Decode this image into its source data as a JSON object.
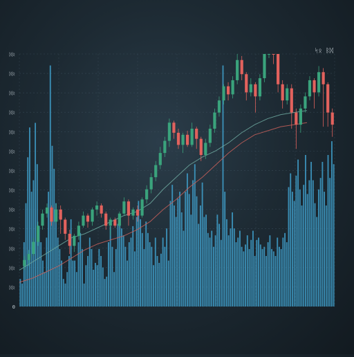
{
  "colors": {
    "background": "#1b2730",
    "grid": "#3f5260",
    "up": "#3aa37c",
    "down": "#e2625d",
    "volume": "#3f9fca",
    "ma_short": "#6fa9a0",
    "ma_long": "#c9605a",
    "label": "#c9d3da"
  },
  "header": {
    "legend_text": "ᛋᛟ ᛒᛞ"
  },
  "chart_data": {
    "type": "candlestick",
    "title": "",
    "xlabel": "",
    "ylabel": "",
    "grid": true,
    "price_range": [
      0,
      12.5
    ],
    "volume_range": [
      0,
      11
    ],
    "y_tick_labels": [
      "0",
      "ᛞᛟ",
      "ᛞᛟ",
      "ᛞᛟ",
      "ᛞᛟ",
      "ᛞᛟ",
      "ᛞᛟ",
      "ᛞᛟ",
      "ᛞᛟ",
      "ᛞᛟ",
      "ᛞᛟ",
      "ᛞᛟ",
      "ᛞᛟ",
      "ᛞᛟ"
    ],
    "ma_short": [
      1.8,
      2.2,
      2.6,
      3.0,
      3.4,
      3.6,
      3.9,
      4.2,
      4.5,
      4.7,
      5.1,
      5.8,
      6.4,
      7.0,
      7.4,
      7.7,
      8.1,
      8.6,
      9.0,
      9.3,
      9.5,
      9.6,
      9.7
    ],
    "ma_long": [
      1.2,
      1.4,
      1.7,
      2.0,
      2.4,
      2.8,
      3.1,
      3.3,
      3.5,
      3.8,
      4.2,
      4.8,
      5.3,
      5.9,
      6.4,
      7.0,
      7.6,
      8.1,
      8.5,
      8.7,
      8.9,
      9.0,
      9.1
    ],
    "candles": [
      [
        2.0,
        2.3,
        1.8,
        2.5
      ],
      [
        2.3,
        2.6,
        2.0,
        2.8
      ],
      [
        2.6,
        3.2,
        2.5,
        3.4
      ],
      [
        3.2,
        4.0,
        3.0,
        4.2
      ],
      [
        4.0,
        4.6,
        3.8,
        4.8
      ],
      [
        4.6,
        4.9,
        4.4,
        5.1
      ],
      [
        4.9,
        4.2,
        4.0,
        5.0
      ],
      [
        4.2,
        4.8,
        4.1,
        5.1
      ],
      [
        4.8,
        4.3,
        3.6,
        5.0
      ],
      [
        4.3,
        3.6,
        3.3,
        4.4
      ],
      [
        3.6,
        3.0,
        2.6,
        3.8
      ],
      [
        3.0,
        3.5,
        2.7,
        3.6
      ],
      [
        3.5,
        4.0,
        3.3,
        4.2
      ],
      [
        4.0,
        4.5,
        3.9,
        4.7
      ],
      [
        4.5,
        4.2,
        3.9,
        4.6
      ],
      [
        4.2,
        4.8,
        4.0,
        4.9
      ],
      [
        4.8,
        5.0,
        4.5,
        5.2
      ],
      [
        5.0,
        4.6,
        4.4,
        5.1
      ],
      [
        4.6,
        4.0,
        3.8,
        4.7
      ],
      [
        4.0,
        4.3,
        3.5,
        4.4
      ],
      [
        4.3,
        4.0,
        3.9,
        4.4
      ],
      [
        4.0,
        4.6,
        3.9,
        4.7
      ],
      [
        4.6,
        5.2,
        4.5,
        5.4
      ],
      [
        5.2,
        4.5,
        4.0,
        5.3
      ],
      [
        4.5,
        4.8,
        4.3,
        4.9
      ],
      [
        4.8,
        4.5,
        4.2,
        5.0
      ],
      [
        4.5,
        5.3,
        4.4,
        5.4
      ],
      [
        5.3,
        5.8,
        5.1,
        6.0
      ],
      [
        5.8,
        6.4,
        5.6,
        6.6
      ],
      [
        6.4,
        7.0,
        6.2,
        7.2
      ],
      [
        7.0,
        7.6,
        6.8,
        7.9
      ],
      [
        7.6,
        8.2,
        7.4,
        8.4
      ],
      [
        8.2,
        9.1,
        7.9,
        9.3
      ],
      [
        9.1,
        8.6,
        8.3,
        9.2
      ],
      [
        8.6,
        8.0,
        7.8,
        8.8
      ],
      [
        8.0,
        8.5,
        7.6,
        8.6
      ],
      [
        8.5,
        8.0,
        7.9,
        8.7
      ],
      [
        8.0,
        8.8,
        7.9,
        9.1
      ],
      [
        8.8,
        8.3,
        7.8,
        8.9
      ],
      [
        8.3,
        7.5,
        7.2,
        8.4
      ],
      [
        7.5,
        8.1,
        7.3,
        8.3
      ],
      [
        8.1,
        8.8,
        7.9,
        9.0
      ],
      [
        8.8,
        9.6,
        8.6,
        9.8
      ],
      [
        9.6,
        10.2,
        9.4,
        10.4
      ],
      [
        10.2,
        10.9,
        10.0,
        11.0
      ],
      [
        10.9,
        10.5,
        10.2,
        11.1
      ],
      [
        10.5,
        11.2,
        10.3,
        11.4
      ],
      [
        11.2,
        12.2,
        11.0,
        12.5
      ],
      [
        12.2,
        11.5,
        11.2,
        12.4
      ],
      [
        11.5,
        10.6,
        10.2,
        11.6
      ],
      [
        10.6,
        11.0,
        10.4,
        11.3
      ],
      [
        11.0,
        10.4,
        9.6,
        11.1
      ],
      [
        10.4,
        11.3,
        10.2,
        11.5
      ],
      [
        11.3,
        12.5,
        11.1,
        12.8
      ],
      [
        12.5,
        13.2,
        12.3,
        13.5
      ],
      [
        13.2,
        12.6,
        12.0,
        13.4
      ],
      [
        12.6,
        11.0,
        10.6,
        12.7
      ],
      [
        11.0,
        10.2,
        9.8,
        11.2
      ],
      [
        10.2,
        10.8,
        10.0,
        11.0
      ],
      [
        10.8,
        9.6,
        8.8,
        11.0
      ],
      [
        9.6,
        9.0,
        7.8,
        9.8
      ],
      [
        9.0,
        9.8,
        8.6,
        10.0
      ],
      [
        9.8,
        10.4,
        9.6,
        10.6
      ],
      [
        10.4,
        11.2,
        10.2,
        11.4
      ],
      [
        11.2,
        10.6,
        9.8,
        11.3
      ],
      [
        10.6,
        11.6,
        10.4,
        11.9
      ],
      [
        11.6,
        11.0,
        8.9,
        11.8
      ],
      [
        11.0,
        9.6,
        8.9,
        11.1
      ],
      [
        9.6,
        9.0,
        8.4,
        9.8
      ]
    ],
    "volume": [
      1.2,
      1.0,
      2.8,
      4.5,
      6.5,
      7.8,
      5.0,
      5.5,
      8.0,
      6.2,
      3.5,
      2.8,
      2.0,
      1.5,
      3.0,
      5.0,
      10.5,
      7.0,
      6.0,
      4.5,
      3.0,
      2.5,
      2.0,
      1.2,
      1.0,
      1.5,
      2.2,
      3.8,
      2.0,
      2.0,
      1.5,
      2.8,
      3.2,
      2.5,
      1.0,
      1.8,
      2.2,
      3.0,
      2.5,
      1.6,
      1.9,
      1.8,
      2.5,
      2.2,
      1.7,
      1.2,
      1.3,
      2.8,
      3.5,
      2.6,
      1.5,
      2.5,
      3.6,
      4.0,
      3.4,
      3.1,
      2.6,
      2.0,
      2.8,
      3.0,
      3.5,
      2.4,
      3.9,
      4.6,
      3.8,
      3.2,
      2.5,
      3.7,
      3.2,
      2.8,
      2.6,
      1.8,
      3.0,
      2.2,
      1.9,
      2.3,
      3.0,
      2.6,
      3.4,
      2.0,
      4.6,
      5.3,
      4.4,
      3.9,
      4.7,
      5.0,
      4.1,
      3.3,
      5.0,
      5.8,
      4.9,
      4.0,
      5.5,
      6.2,
      4.8,
      3.6,
      4.4,
      5.4,
      3.9,
      4.0,
      3.2,
      3.0,
      3.3,
      2.6,
      3.1,
      4.0,
      3.6,
      2.9,
      10.5,
      5.0,
      3.8,
      3.1,
      3.4,
      4.1,
      3.4,
      2.8,
      3.0,
      3.3,
      2.6,
      2.4,
      2.7,
      3.1,
      2.5,
      2.9,
      3.3,
      2.2,
      2.9,
      3.0,
      2.7,
      2.5,
      2.6,
      2.2,
      2.8,
      3.1,
      2.5,
      2.4,
      2.2,
      3.0,
      2.6,
      2.5,
      3.0,
      3.2,
      2.8,
      5.2,
      5.8,
      5.0,
      4.6,
      5.7,
      6.4,
      5.1,
      4.4,
      5.3,
      6.6,
      4.9,
      5.5,
      6.3,
      5.5,
      4.5,
      3.9,
      5.1,
      5.6,
      6.3,
      5.0,
      4.4,
      6.6,
      5.6,
      7.2,
      6.2
    ]
  }
}
